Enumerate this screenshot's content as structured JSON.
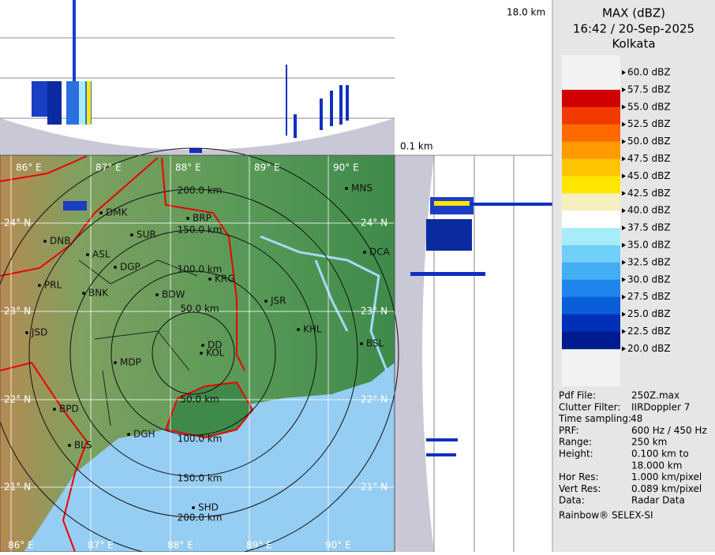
{
  "profile_labels": {
    "top_height": "18.0 km",
    "bottom_height": "0.1 km"
  },
  "header": {
    "title": "MAX (dBZ)",
    "datetime": "16:42 / 20-Sep-2025",
    "site": "Kolkata"
  },
  "legend": {
    "labels": [
      "60.0 dBZ",
      "57.5 dBZ",
      "55.0 dBZ",
      "52.5 dBZ",
      "50.0 dBZ",
      "47.5 dBZ",
      "45.0 dBZ",
      "42.5 dBZ",
      "40.0 dBZ",
      "37.5 dBZ",
      "35.0 dBZ",
      "32.5 dBZ",
      "30.0 dBZ",
      "27.5 dBZ",
      "25.0 dBZ",
      "22.5 dBZ",
      "20.0 dBZ"
    ],
    "colors": [
      "#9c0000",
      "#d00000",
      "#f03a00",
      "#ff6a00",
      "#ff9a00",
      "#ffc400",
      "#ffe600",
      "#f6efc0",
      "#ffffff",
      "#a8ecfa",
      "#70d0fa",
      "#42aef4",
      "#1e86ea",
      "#0a5ed8",
      "#0030b8",
      "#001a90"
    ]
  },
  "info": {
    "rows": [
      {
        "label": "Pdf File:",
        "value": [
          "250Z.max"
        ]
      },
      {
        "label": "Clutter Filter:",
        "value": [
          "IIRDoppler 7"
        ]
      },
      {
        "label": "Time sampling:",
        "value": [
          "48"
        ]
      },
      {
        "label": "PRF:",
        "value": [
          "600 Hz / 450 Hz"
        ]
      },
      {
        "label": "Range:",
        "value": [
          "250 km"
        ]
      },
      {
        "label": "Height:",
        "value": [
          "0.100 km to",
          "18.000 km"
        ]
      },
      {
        "label": "Hor Res:",
        "value": [
          "1.000 km/pixel"
        ]
      },
      {
        "label": "Vert Res:",
        "value": [
          "0.089 km/pixel"
        ]
      },
      {
        "label": "Data:",
        "value": [
          "Radar Data"
        ]
      }
    ],
    "footer": "Rainbow® SELEX-SI"
  },
  "map": {
    "longitudes": [
      "86° E",
      "87° E",
      "88° E",
      "89° E",
      "90° E"
    ],
    "latitudes": [
      "24° N",
      "23° N",
      "22° N",
      "21° N"
    ],
    "rings_upper": [
      "50.0 km",
      "100.0 km",
      "150.0 km",
      "200.0 km"
    ],
    "rings_lower": [
      "50.0 km",
      "100.0 km",
      "150.0 km",
      "200.0 km"
    ],
    "places": [
      "MNS",
      "DMK",
      "BRP",
      "DNB",
      "SUR",
      "ASL",
      "DGP",
      "DCA",
      "KRG",
      "PRL",
      "BNK",
      "BDW",
      "JSR",
      "KHL",
      "JSD",
      "DD",
      "KOL",
      "BSL",
      "MDP",
      "BPD",
      "DGH",
      "BLS",
      "SHD"
    ]
  }
}
